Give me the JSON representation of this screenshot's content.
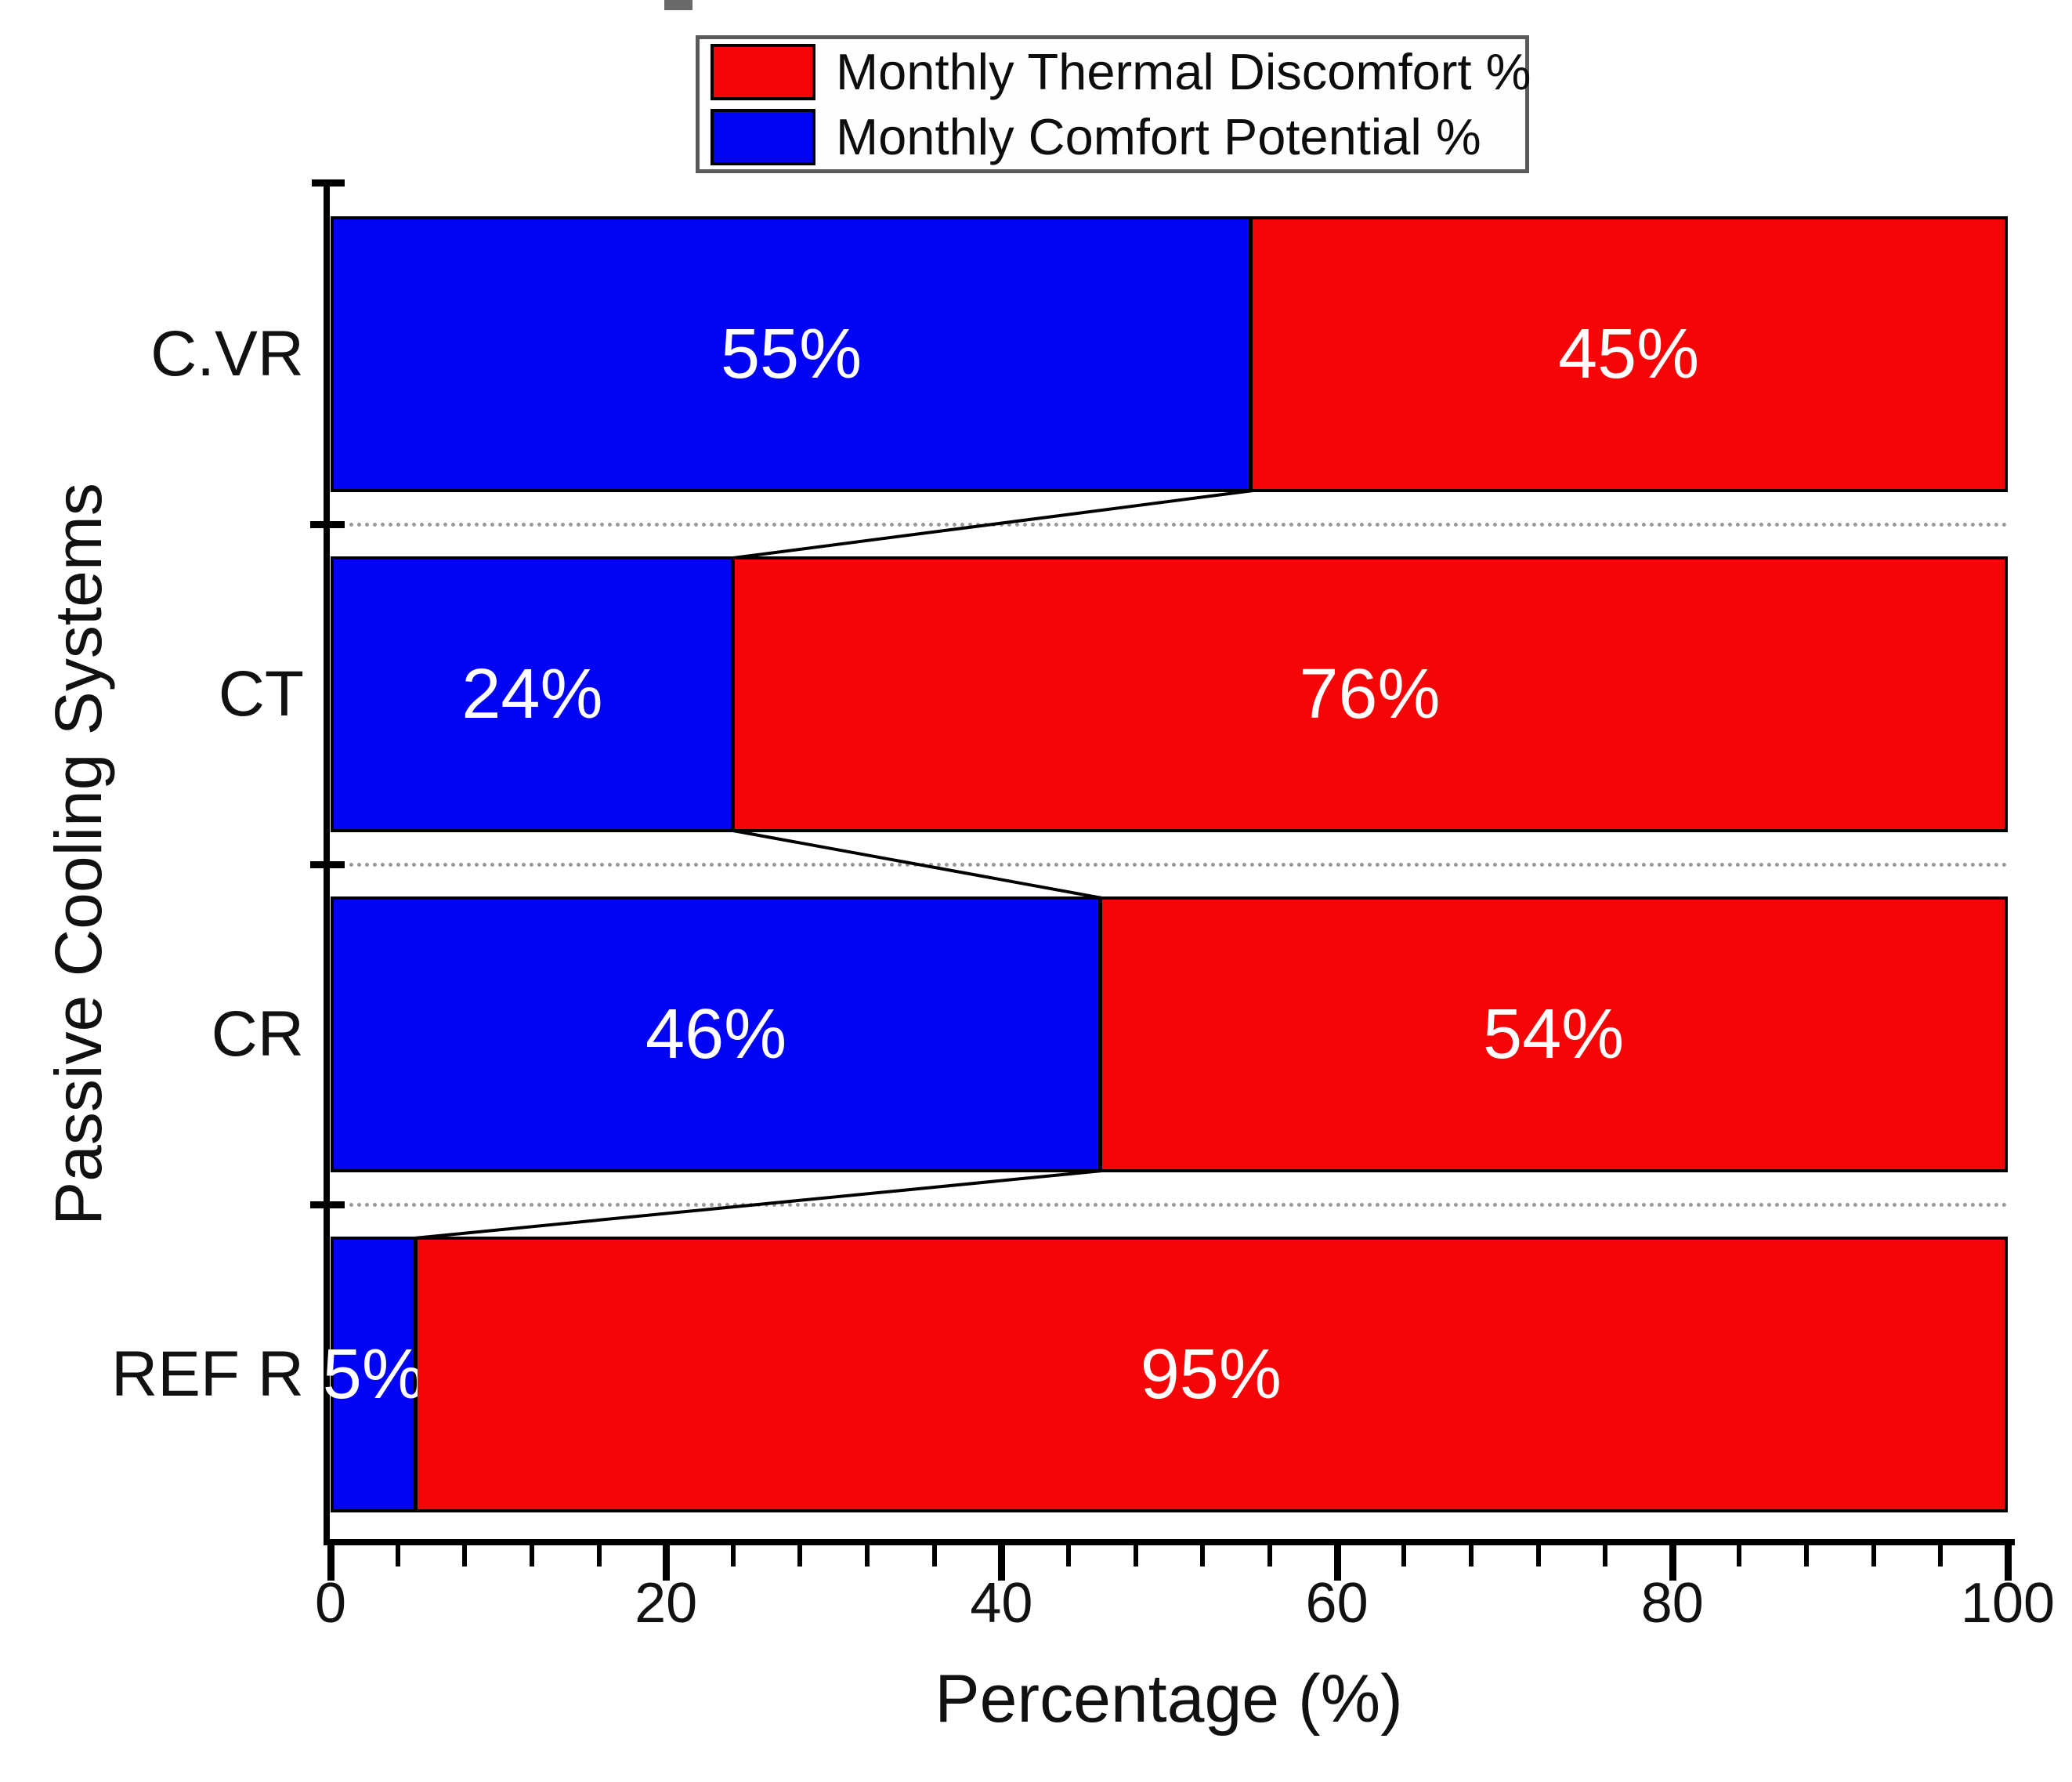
{
  "figure_background": "#ffffff",
  "legend": {
    "border_color": "#5a5a5a",
    "items": [
      {
        "label": "Monthly Thermal Discomfort %",
        "color": "#f50505",
        "swatch": "red-swatch"
      },
      {
        "label": "Monthly Comfort Potential %",
        "color": "#0404f4",
        "swatch": "blue-swatch"
      }
    ]
  },
  "chart_data": {
    "type": "bar",
    "orientation": "horizontal",
    "stacked": true,
    "title": "",
    "xlabel": "Percentage (%)",
    "ylabel": "Passive Cooling Systems",
    "categories": [
      "C.VR",
      "CT",
      "CR",
      "REF R"
    ],
    "series": [
      {
        "name": "Monthly Comfort Potential %",
        "color": "#0404f4",
        "values": [
          55,
          24,
          46,
          5
        ]
      },
      {
        "name": "Monthly Thermal Discomfort %",
        "color": "#f50505",
        "values": [
          45,
          76,
          54,
          95
        ]
      }
    ],
    "bar_labels": {
      "blue": [
        "55%",
        "24%",
        "46%",
        "5%"
      ],
      "red": [
        "45%",
        "76%",
        "54%",
        "95%"
      ]
    },
    "xlim": [
      0,
      100
    ],
    "x_major_ticks": [
      0,
      20,
      40,
      60,
      80,
      100
    ],
    "x_tick_labels": [
      "0",
      "20",
      "40",
      "60",
      "80",
      "100"
    ],
    "x_minor_tick_step": 4,
    "grid": "dashed gray separator line centered in each gap between bars",
    "gridline_color": "#999999",
    "bar_outline_color": "#000000",
    "bar_label_color": "#ffffff",
    "legend_position": "top-center",
    "connectors": "black lines join the blue/red boundary of each bar to the boundary of the bar below"
  }
}
